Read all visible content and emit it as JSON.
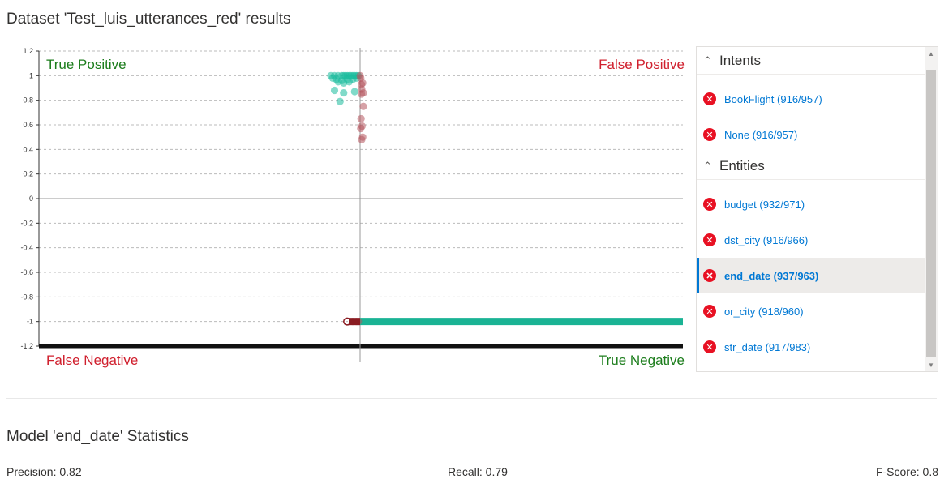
{
  "page": {
    "title": "Dataset 'Test_luis_utterances_red' results"
  },
  "chart_data": {
    "type": "scatter",
    "y_ticks": [
      "1.2",
      "1",
      "0.8",
      "0.6",
      "0.4",
      "0.2",
      "0",
      "-0.2",
      "-0.4",
      "-0.6",
      "-0.8",
      "-1",
      "-1.2"
    ],
    "ylim": [
      -1.2,
      1.2
    ],
    "grid": true,
    "quadrants": {
      "top_left": "True Positive",
      "top_right": "False Positive",
      "bottom_left": "False Negative",
      "bottom_right": "True Negative"
    },
    "series": [
      {
        "color": "#1abc9c",
        "points": [
          [
            -0.08,
            1
          ],
          [
            -0.07,
            1
          ],
          [
            -0.06,
            1
          ],
          [
            -0.05,
            1
          ],
          [
            -0.045,
            1
          ],
          [
            -0.04,
            1
          ],
          [
            -0.035,
            1
          ],
          [
            -0.03,
            1
          ],
          [
            -0.025,
            1
          ],
          [
            -0.02,
            1
          ],
          [
            -0.015,
            1
          ],
          [
            -0.01,
            1
          ],
          [
            -0.005,
            1
          ],
          [
            -0.075,
            0.98
          ],
          [
            -0.065,
            0.97
          ],
          [
            -0.05,
            0.96
          ],
          [
            -0.035,
            0.97
          ],
          [
            -0.02,
            0.97
          ],
          [
            -0.01,
            0.98
          ],
          [
            -0.06,
            0.95
          ],
          [
            -0.045,
            0.94
          ],
          [
            -0.03,
            0.95
          ],
          [
            -0.07,
            0.88
          ],
          [
            -0.045,
            0.86
          ],
          [
            -0.015,
            0.87
          ],
          [
            -0.055,
            0.79
          ]
        ]
      },
      {
        "color": "#b5565e",
        "points": [
          [
            0,
            1
          ],
          [
            0.002,
            0.98
          ],
          [
            0.004,
            0.93
          ],
          [
            0.008,
            0.94
          ],
          [
            0.005,
            0.89
          ],
          [
            0.01,
            0.86
          ],
          [
            0.004,
            0.85
          ],
          [
            0.01,
            0.75
          ],
          [
            0.003,
            0.65
          ],
          [
            0.006,
            0.59
          ],
          [
            0.002,
            0.57
          ],
          [
            0.008,
            0.5
          ],
          [
            0.005,
            0.48
          ],
          [
            -0.01,
            -1
          ],
          [
            -0.005,
            -1
          ],
          [
            -0.02,
            -1
          ]
        ]
      }
    ],
    "true_negative_band": {
      "y": -1,
      "x_range": [
        0,
        1
      ],
      "color": "#1ab394"
    }
  },
  "panel": {
    "groups": [
      {
        "label": "Intents",
        "items": [
          {
            "label": "BookFlight (916/957)",
            "selected": false
          },
          {
            "label": "None (916/957)",
            "selected": false
          }
        ]
      },
      {
        "label": "Entities",
        "items": [
          {
            "label": "budget (932/971)",
            "selected": false
          },
          {
            "label": "dst_city (916/966)",
            "selected": false
          },
          {
            "label": "end_date (937/963)",
            "selected": true
          },
          {
            "label": "or_city (918/960)",
            "selected": false
          },
          {
            "label": "str_date (917/983)",
            "selected": false
          }
        ]
      }
    ]
  },
  "stats": {
    "title": "Model 'end_date' Statistics",
    "precision": "Precision: 0.82",
    "recall": "Recall: 0.79",
    "fscore": "F-Score: 0.8"
  }
}
